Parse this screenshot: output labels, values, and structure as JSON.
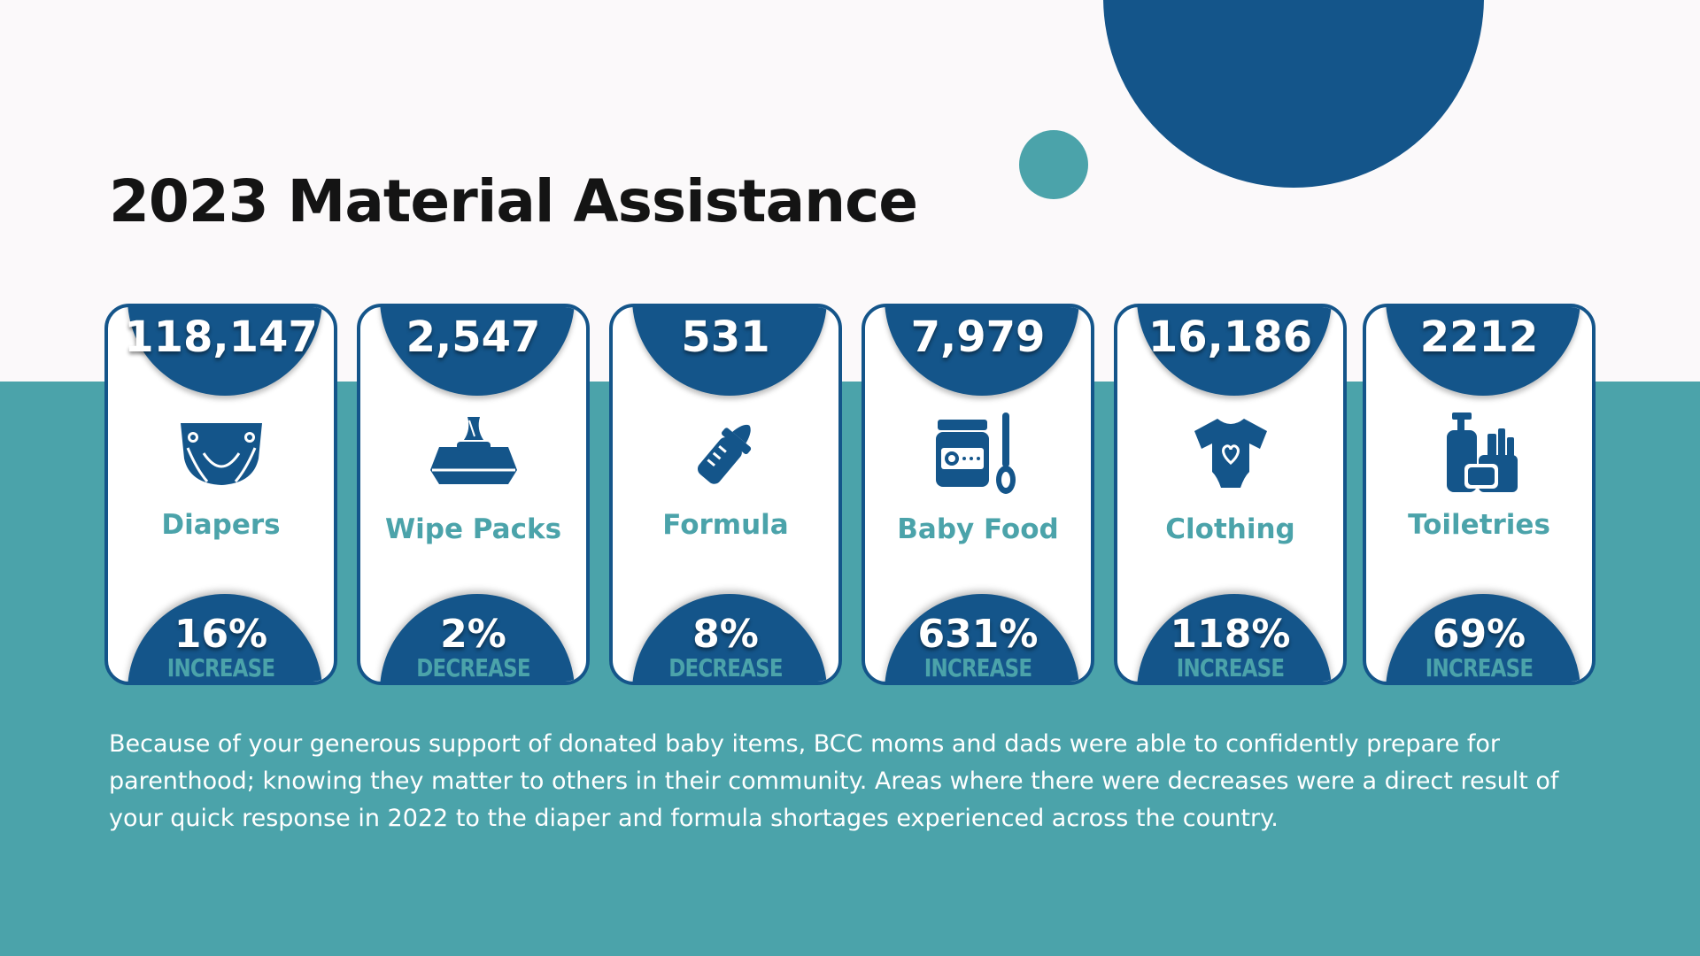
{
  "title": "2023 Material Assistance",
  "colors": {
    "navy": "#14558a",
    "teal": "#4ba3aa",
    "background": "#fbf9fa"
  },
  "cards": [
    {
      "value": "118,147",
      "label": "Diapers",
      "percent": "16%",
      "direction": "INCREASE",
      "icon": "diaper-icon"
    },
    {
      "value": "2,547",
      "label": "Wipe Packs",
      "percent": "2%",
      "direction": "DECREASE",
      "icon": "wipes-icon"
    },
    {
      "value": "531",
      "label": "Formula",
      "percent": "8%",
      "direction": "DECREASE",
      "icon": "baby-bottle-icon"
    },
    {
      "value": "7,979",
      "label": "Baby Food",
      "percent": "631%",
      "direction": "INCREASE",
      "icon": "baby-food-icon"
    },
    {
      "value": "16,186",
      "label": "Clothing",
      "percent": "118%",
      "direction": "INCREASE",
      "icon": "onesie-icon"
    },
    {
      "value": "2212",
      "label": "Toiletries",
      "percent": "69%",
      "direction": "INCREASE",
      "icon": "toiletries-icon"
    }
  ],
  "body_text": "Because of your generous support of donated baby items, BCC moms and dads were able to confidently prepare for parenthood; knowing they matter to others in their community.  Areas where there were decreases were a direct result of your quick response in 2022 to the diaper and formula shortages experienced across the country."
}
